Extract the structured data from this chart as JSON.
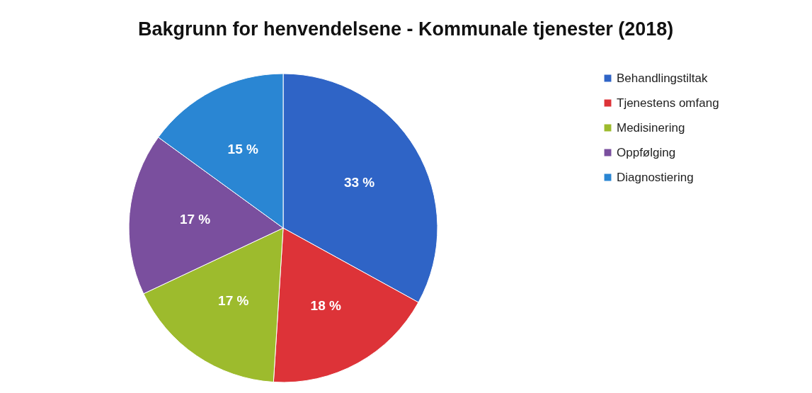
{
  "chart_data": {
    "type": "pie",
    "title": "Bakgrunn for henvendelsene - Kommunale tjenester (2018)",
    "categories": [
      "Behandlingstiltak",
      "Tjenestens omfang",
      "Medisinering",
      "Oppfølging",
      "Diagnostiering"
    ],
    "values": [
      33,
      18,
      17,
      17,
      15
    ],
    "value_labels": [
      "33 %",
      "18 %",
      "17 %",
      "17 %",
      "15 %"
    ],
    "colors": [
      "#2f64c6",
      "#dd3338",
      "#9dbb2d",
      "#7a4f9e",
      "#2a86d3"
    ],
    "legend": "right"
  }
}
